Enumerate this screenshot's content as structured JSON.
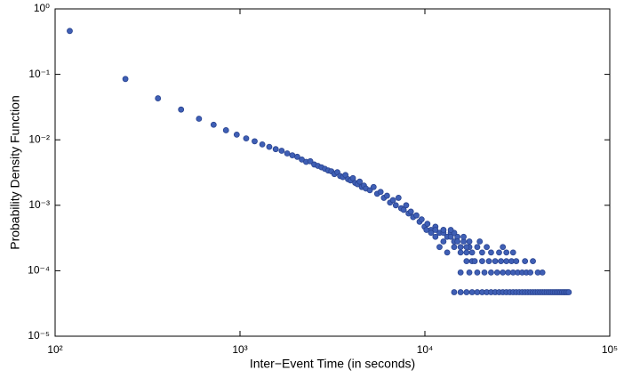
{
  "chart_data": {
    "type": "scatter",
    "x_label": "Inter−Event Time (in seconds)",
    "y_label": "Probability Density Function",
    "xscale": "log",
    "yscale": "log",
    "xlim": [
      100,
      100000
    ],
    "ylim": [
      1e-05,
      1
    ],
    "xticks": [
      {
        "value": 100,
        "label": "10²"
      },
      {
        "value": 1000,
        "label": "10³"
      },
      {
        "value": 10000,
        "label": "10⁴"
      },
      {
        "value": 100000,
        "label": "10⁵"
      }
    ],
    "yticks": [
      {
        "value": 1e-05,
        "label": "10⁻⁵"
      },
      {
        "value": 0.0001,
        "label": "10⁻⁴"
      },
      {
        "value": 0.001,
        "label": "10⁻³"
      },
      {
        "value": 0.01,
        "label": "10⁻²"
      },
      {
        "value": 0.1,
        "label": "10⁻¹"
      },
      {
        "value": 1,
        "label": "10⁰"
      }
    ],
    "color": "#3f5fb5",
    "x": [
      120,
      240,
      360,
      480,
      600,
      720,
      840,
      960,
      1080,
      1200,
      1320,
      1440,
      1560,
      1680,
      1800,
      1920,
      2040,
      2160,
      2280,
      2400,
      2520,
      2640,
      2760,
      2880,
      3000,
      3120,
      3240,
      3360,
      3480,
      3600,
      3720,
      3840,
      3960,
      4080,
      4200,
      4320,
      4440,
      4560,
      4680,
      4800,
      5040,
      5280,
      5520,
      5760,
      6000,
      6240,
      6480,
      6720,
      6960,
      7200,
      7440,
      7680,
      7920,
      8160,
      8400,
      8640,
      9000,
      9360,
      9600,
      9960,
      10320,
      10800,
      11400,
      12000,
      12600,
      13200,
      13800,
      14400,
      15000,
      15600,
      16200,
      16800,
      17400,
      18000,
      14400,
      15600,
      16800,
      18000,
      19200,
      20400,
      21600,
      22800,
      24000,
      25200,
      26400,
      27600,
      28800,
      30000,
      31200,
      32400,
      33600,
      34800,
      36000,
      37200,
      38400,
      39600,
      40800,
      42000,
      43200,
      44400,
      45600,
      46800,
      48000,
      49200,
      50400,
      51600,
      52800,
      54000,
      55200,
      56400,
      57600,
      58800,
      60000,
      15600,
      17400,
      19200,
      21000,
      22800,
      24600,
      26400,
      28200,
      30000,
      31800,
      33600,
      35400,
      37200,
      40800,
      43200,
      16800,
      18600,
      20400,
      22200,
      24000,
      25800,
      27600,
      29400,
      31200,
      34800,
      38400,
      13200,
      15600,
      18000,
      20400,
      22800,
      25200,
      27600,
      30000,
      12000,
      14400,
      16800,
      19200,
      21600,
      26400,
      12600,
      15000,
      17400,
      19800,
      11400,
      13800,
      16200,
      10800,
      12600,
      14400,
      10200,
      11400,
      12600,
      13800
    ],
    "values": [
      0.46,
      0.085,
      0.043,
      0.029,
      0.021,
      0.017,
      0.014,
      0.012,
      0.0105,
      0.0095,
      0.0085,
      0.0078,
      0.0072,
      0.0068,
      0.0062,
      0.0058,
      0.0055,
      0.005,
      0.0046,
      0.0047,
      0.0042,
      0.004,
      0.0038,
      0.0036,
      0.0034,
      0.0033,
      0.003,
      0.0032,
      0.0028,
      0.0027,
      0.0029,
      0.0025,
      0.0024,
      0.0026,
      0.0022,
      0.0021,
      0.0023,
      0.0019,
      0.002,
      0.0018,
      0.0017,
      0.0019,
      0.0015,
      0.0016,
      0.0013,
      0.0014,
      0.0011,
      0.0012,
      0.001,
      0.0013,
      0.0009,
      0.00085,
      0.001,
      0.00075,
      0.0008,
      0.00066,
      0.0007,
      0.00056,
      0.00061,
      0.00047,
      0.00052,
      0.00042,
      0.00047,
      0.00038,
      0.00042,
      0.00033,
      0.00038,
      0.00028,
      0.00033,
      0.00023,
      0.00028,
      0.00019,
      0.00023,
      0.00014,
      4.7e-05,
      4.7e-05,
      4.7e-05,
      4.7e-05,
      4.7e-05,
      4.7e-05,
      4.7e-05,
      4.7e-05,
      4.7e-05,
      4.7e-05,
      4.7e-05,
      4.7e-05,
      4.7e-05,
      4.7e-05,
      4.7e-05,
      4.7e-05,
      4.7e-05,
      4.7e-05,
      4.7e-05,
      4.7e-05,
      4.7e-05,
      4.7e-05,
      4.7e-05,
      4.7e-05,
      4.7e-05,
      4.7e-05,
      4.7e-05,
      4.7e-05,
      4.7e-05,
      4.7e-05,
      4.7e-05,
      4.7e-05,
      4.7e-05,
      4.7e-05,
      4.7e-05,
      4.7e-05,
      4.7e-05,
      4.7e-05,
      4.7e-05,
      9.4e-05,
      9.4e-05,
      9.4e-05,
      9.4e-05,
      9.4e-05,
      9.4e-05,
      9.4e-05,
      9.4e-05,
      9.4e-05,
      9.4e-05,
      9.4e-05,
      9.4e-05,
      9.4e-05,
      9.4e-05,
      9.4e-05,
      0.00014,
      0.00014,
      0.00014,
      0.00014,
      0.00014,
      0.00014,
      0.00014,
      0.00014,
      0.00014,
      0.00014,
      0.00014,
      0.00019,
      0.00019,
      0.00019,
      0.00019,
      0.00019,
      0.00019,
      0.00019,
      0.00019,
      0.00023,
      0.00023,
      0.00023,
      0.00023,
      0.00023,
      0.00023,
      0.00028,
      0.00028,
      0.00028,
      0.00028,
      0.00033,
      0.00033,
      0.00033,
      0.00038,
      0.00038,
      0.00038,
      0.00042,
      0.00042,
      0.00042,
      0.00042
    ]
  }
}
